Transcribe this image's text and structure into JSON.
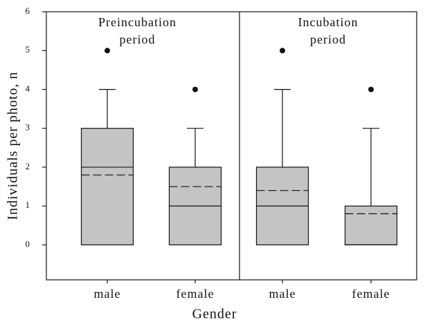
{
  "chart_data": {
    "type": "box",
    "xlabel": "Gender",
    "ylabel": "Individuals per photo, n",
    "ylim": [
      -0.9,
      6
    ],
    "yticks": [
      0,
      1,
      2,
      3,
      4,
      5,
      6
    ],
    "box_color": "#c4c4c4",
    "panels": [
      {
        "title": [
          "Preincubation",
          "period"
        ],
        "categories": [
          "male",
          "female"
        ],
        "boxes": [
          {
            "min": 0,
            "q1": 0,
            "median": 2,
            "q3": 3,
            "max": 4,
            "mean": 1.8,
            "outliers": [
              5
            ]
          },
          {
            "min": 0,
            "q1": 0,
            "median": 1,
            "q3": 2,
            "max": 3,
            "mean": 1.5,
            "outliers": [
              4
            ]
          }
        ]
      },
      {
        "title": [
          "Incubation",
          "period"
        ],
        "categories": [
          "male",
          "female"
        ],
        "boxes": [
          {
            "min": 0,
            "q1": 0,
            "median": 1,
            "q3": 2,
            "max": 4,
            "mean": 1.4,
            "outliers": [
              5
            ]
          },
          {
            "min": 0,
            "q1": 0,
            "median": 0,
            "q3": 1,
            "max": 3,
            "mean": 0.8,
            "outliers": [
              4
            ]
          }
        ]
      }
    ]
  }
}
